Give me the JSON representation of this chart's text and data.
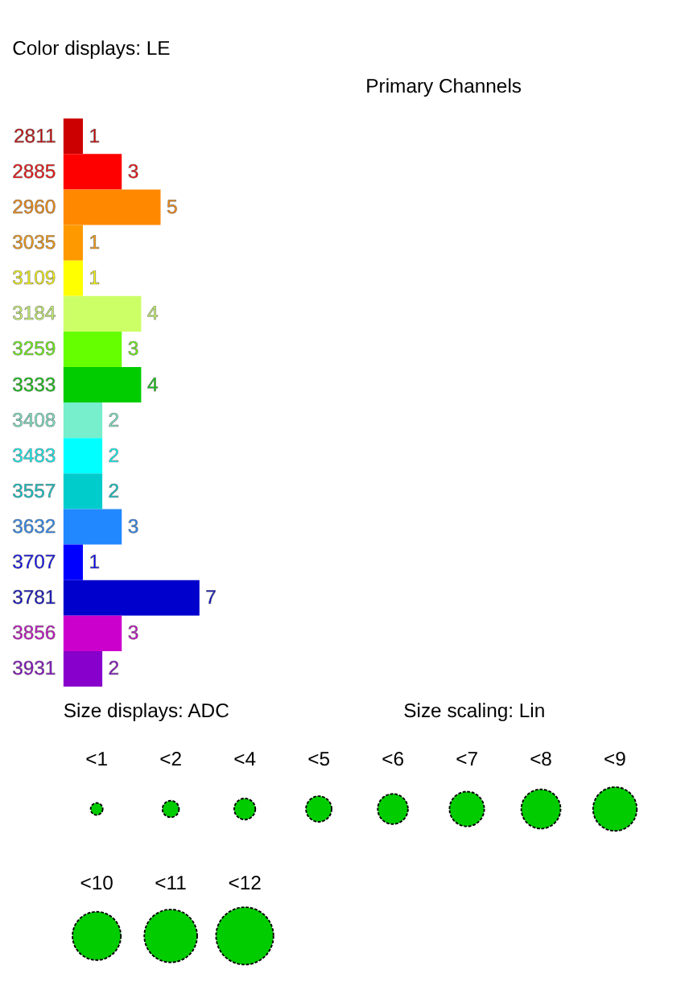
{
  "chart_data": [
    {
      "type": "bar",
      "orientation": "horizontal",
      "title": "Color displays: LE",
      "annotations": [
        "Primary Channels"
      ],
      "categories": [
        "2811",
        "2885",
        "2960",
        "3035",
        "3109",
        "3184",
        "3259",
        "3333",
        "3408",
        "3483",
        "3557",
        "3632",
        "3707",
        "3781",
        "3856",
        "3931"
      ],
      "values": [
        1,
        3,
        5,
        1,
        1,
        4,
        3,
        4,
        2,
        2,
        2,
        3,
        1,
        7,
        3,
        2
      ],
      "colors": [
        "#cc0000",
        "#ff0000",
        "#ff8800",
        "#ff9900",
        "#ffff00",
        "#ccff66",
        "#66ff00",
        "#00cc00",
        "#77eecc",
        "#00ffff",
        "#00cccc",
        "#2288ff",
        "#0000ff",
        "#0000cc",
        "#cc00cc",
        "#8800cc"
      ],
      "data_labels": true,
      "tick_labels": "y"
    },
    {
      "type": "other",
      "title": "Size displays: ADC",
      "annotations": [
        "Size scaling: Lin",
        "<1",
        "<2",
        "<4",
        "<5",
        "<6",
        "<7",
        "<8",
        "<9",
        "<10",
        "<11",
        "<12"
      ]
    }
  ]
}
